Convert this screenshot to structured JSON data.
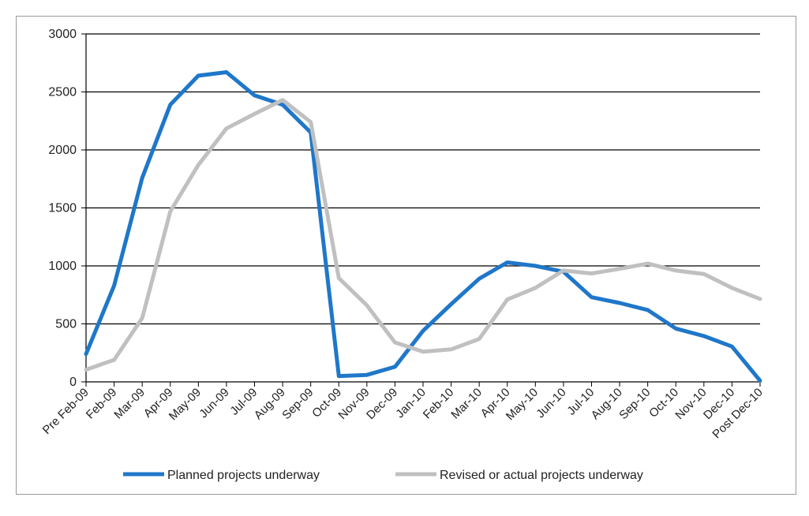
{
  "chart_data": {
    "type": "line",
    "title": "",
    "xlabel": "",
    "ylabel": "",
    "ylim": [
      0,
      3000
    ],
    "yticks": [
      0,
      500,
      1000,
      1500,
      2000,
      2500,
      3000
    ],
    "grid": "horizontal",
    "legend_position": "bottom",
    "categories": [
      "Pre Feb-09",
      "Feb-09",
      "Mar-09",
      "Apr-09",
      "May-09",
      "Jun-09",
      "Jul-09",
      "Aug-09",
      "Sep-09",
      "Oct-09",
      "Nov-09",
      "Dec-09",
      "Jan-10",
      "Feb-10",
      "Mar-10",
      "Apr-10",
      "May-10",
      "Jun-10",
      "Jul-10",
      "Aug-10",
      "Sep-10",
      "Oct-10",
      "Nov-10",
      "Dec-10",
      "Post Dec-10"
    ],
    "series": [
      {
        "name": "Planned projects underway",
        "color": "#1f77c9",
        "values": [
          240,
          830,
          1760,
          2390,
          2640,
          2670,
          2470,
          2390,
          2150,
          50,
          60,
          130,
          440,
          670,
          890,
          1030,
          1000,
          950,
          730,
          680,
          620,
          460,
          395,
          305,
          10
        ]
      },
      {
        "name": "Revised or actual projects underway",
        "color": "#c0c0c0",
        "values": [
          105,
          190,
          550,
          1470,
          1870,
          2185,
          2310,
          2430,
          2240,
          895,
          660,
          340,
          260,
          280,
          370,
          710,
          810,
          960,
          935,
          975,
          1020,
          960,
          930,
          810,
          715
        ]
      }
    ]
  }
}
